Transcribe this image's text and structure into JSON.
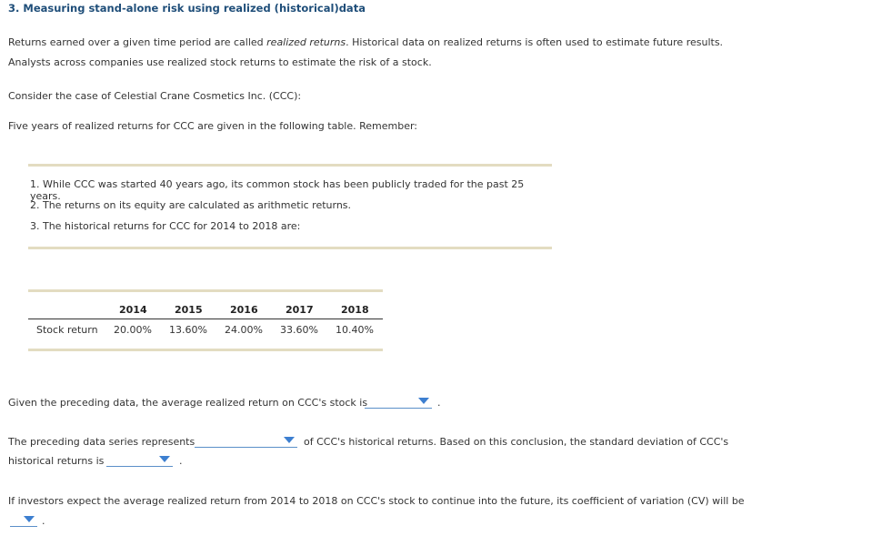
{
  "question": {
    "title": "3. Measuring stand-alone risk using realized (historical)data",
    "intro_pre": "Returns earned over a given time period are called ",
    "intro_em": "realized returns",
    "intro_post": ". Historical data on realized returns is often used to estimate future results.",
    "intro_line2": "Analysts across companies use realized stock returns to estimate the risk of a stock.",
    "consider": "Consider the case of Celestial Crane Cosmetics Inc. (CCC):",
    "five_years": "Five years of realized returns for CCC are given in the following table. Remember:"
  },
  "notes": [
    "1. While CCC was started 40 years ago, its common stock has been publicly traded for the past 25 years.",
    "2. The returns on its equity are calculated as arithmetic returns.",
    "3. The historical returns for CCC for 2014 to 2018 are:"
  ],
  "table": {
    "years": [
      "2014",
      "2015",
      "2016",
      "2017",
      "2018"
    ],
    "row_label": "Stock return",
    "returns": [
      "20.00%",
      "13.60%",
      "24.00%",
      "33.60%",
      "10.40%"
    ]
  },
  "q1": {
    "text": "Given the preceding data, the average realized return on CCC's stock is",
    "end": "."
  },
  "q2": {
    "pre": "The preceding data series represents",
    "post": "of CCC's historical returns. Based on this conclusion, the standard deviation of CCC's",
    "line2": "historical returns is",
    "end": "."
  },
  "q3": {
    "text": "If investors expect the average realized return from 2014 to 2018 on CCC's stock to continue into the future, its coefficient of variation (CV) will be",
    "end": "."
  },
  "colors": {
    "title": "#1f4e79",
    "dropdown_accent": "#3d7fd0",
    "rule": "#e3dcc1"
  }
}
